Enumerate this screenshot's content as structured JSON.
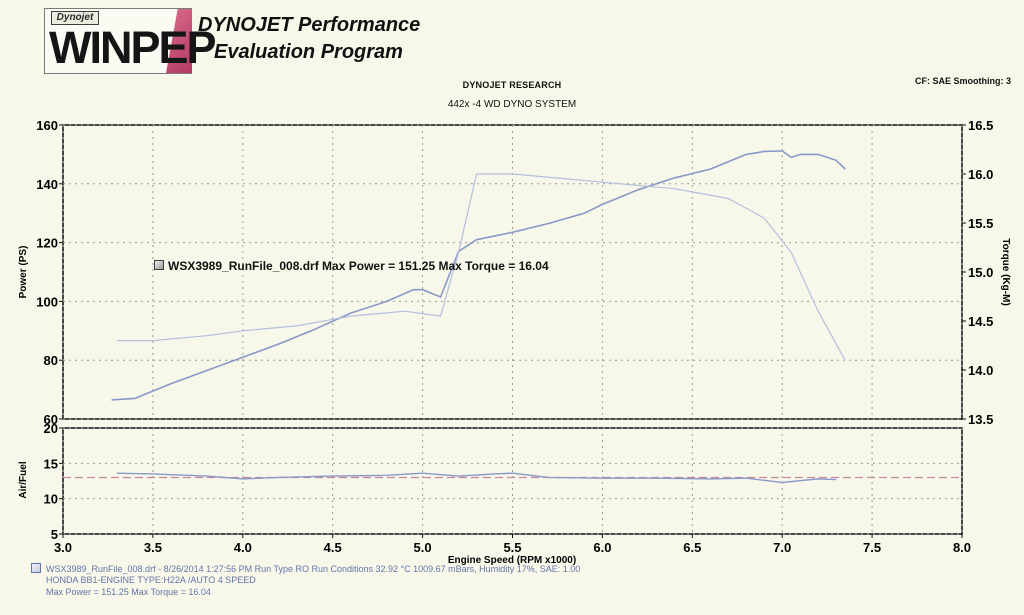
{
  "header": {
    "logo_small": "Dynojet",
    "logo_main": "WINPEP",
    "title_line1": "DYNOJET Performance",
    "title_line2": "Evaluation Program",
    "research": "DYNOJET RESEARCH",
    "system": "442x -4 WD DYNO SYSTEM",
    "cf_info": "CF: SAE  Smoothing: 3"
  },
  "legend": {
    "text": "WSX3989_RunFile_008.drf Max Power = 151.25     Max Torque = 16.04"
  },
  "footer": {
    "line1": "WSX3989_RunFile_008.drf - 8/26/2014 1:27:56 PM  Run Type  RO  Run Conditions  32.92 °C  1009.67 mBars,  Humidity  17%, SAE: 1.00",
    "line2": "HONDA BB1-ENGINE TYPE:H22A /AUTO 4 SPEED",
    "line3": "Max Power = 151.25   Max Torque = 16.04"
  },
  "chart_data": [
    {
      "type": "line",
      "title": "",
      "xlabel": "Engine Speed (RPM x1000)",
      "ylabel": "Power (PS)",
      "y2label": "Torque (Kg-M)",
      "xlim": [
        3.0,
        8.0
      ],
      "ylim": [
        60,
        160
      ],
      "y2lim": [
        13.5,
        16.5
      ],
      "x_ticks": [
        "3.0",
        "3.5",
        "4.0",
        "4.5",
        "5.0",
        "5.5",
        "6.0",
        "6.5",
        "7.0",
        "7.5",
        "8.0"
      ],
      "y_ticks": [
        "60",
        "80",
        "100",
        "120",
        "140",
        "160"
      ],
      "y2_ticks": [
        "13.5",
        "14.0",
        "14.5",
        "15.0",
        "15.5",
        "16.0",
        "16.5"
      ],
      "grid": true,
      "series": [
        {
          "x": [
            3.27,
            3.4,
            3.6,
            3.8,
            4.0,
            4.2,
            4.4,
            4.6,
            4.8,
            4.95,
            5.0,
            5.1,
            5.2,
            5.3,
            5.5,
            5.7,
            5.9,
            6.0,
            6.2,
            6.4,
            6.6,
            6.8,
            6.9,
            7.0,
            7.05,
            7.1,
            7.2,
            7.3,
            7.35
          ],
          "y": [
            66.5,
            67,
            72,
            76.5,
            81,
            85.5,
            90.5,
            96,
            100,
            104,
            104,
            101.5,
            117,
            121,
            123.5,
            126.5,
            130,
            133,
            138,
            142,
            145,
            150,
            151,
            151.2,
            149,
            150,
            150,
            148,
            145
          ],
          "color": "#8a98c8",
          "axis": "left"
        },
        {
          "x": [
            3.3,
            3.5,
            3.8,
            4.0,
            4.3,
            4.6,
            4.9,
            5.1,
            5.2,
            5.3,
            5.5,
            5.8,
            6.1,
            6.4,
            6.7,
            6.9,
            7.05,
            7.2,
            7.35
          ],
          "y": [
            14.3,
            14.3,
            14.35,
            14.4,
            14.45,
            14.55,
            14.6,
            14.55,
            15.2,
            16.0,
            16.0,
            15.95,
            15.9,
            15.85,
            15.75,
            15.55,
            15.2,
            14.6,
            14.1
          ],
          "color": "#b4bfdc",
          "axis": "right"
        }
      ]
    },
    {
      "type": "line",
      "title": "",
      "xlabel": "Engine Speed (RPM x1000)",
      "ylabel": "Air/Fuel",
      "xlim": [
        3.0,
        8.0
      ],
      "ylim": [
        5,
        20
      ],
      "x_ticks": [
        "3.0",
        "3.5",
        "4.0",
        "4.5",
        "5.0",
        "5.5",
        "6.0",
        "6.5",
        "7.0",
        "7.5",
        "8.0"
      ],
      "y_ticks": [
        "5",
        "10",
        "15",
        "20"
      ],
      "grid": true,
      "reference_line": 13.0,
      "series": [
        {
          "x": [
            3.3,
            3.5,
            3.8,
            4.0,
            4.2,
            4.5,
            4.8,
            5.0,
            5.2,
            5.4,
            5.5,
            5.7,
            6.0,
            6.3,
            6.6,
            6.8,
            7.0,
            7.2,
            7.3
          ],
          "y": [
            13.6,
            13.5,
            13.2,
            12.8,
            13.0,
            13.2,
            13.3,
            13.6,
            13.2,
            13.5,
            13.6,
            13.0,
            12.9,
            12.9,
            12.8,
            12.9,
            12.3,
            12.8,
            12.7
          ],
          "color": "#8a98c8"
        }
      ]
    }
  ]
}
